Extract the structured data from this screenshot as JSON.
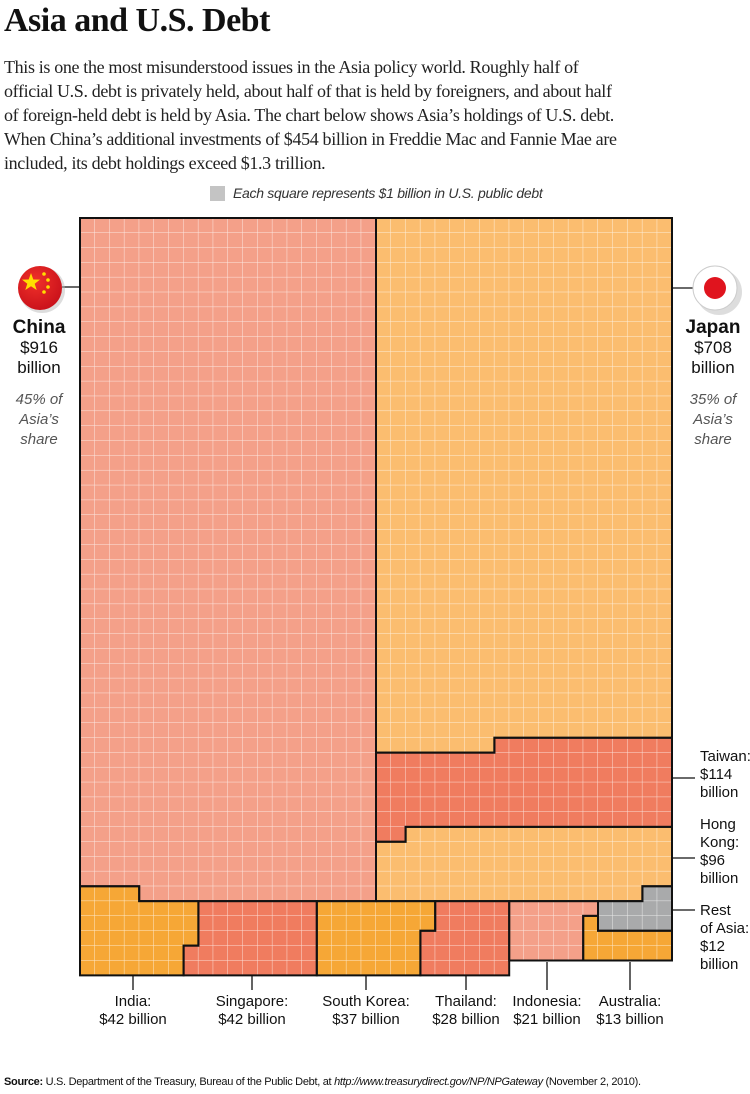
{
  "title": "Asia and U.S. Debt",
  "intro_lines": [
    "This is one the most misunderstood issues in the Asia policy world. Roughly half of",
    "official U.S. debt is privately held, about half of that is held by foreigners, and about half",
    "of foreign-held debt is held by Asia. The chart below shows Asia’s holdings of U.S. debt.",
    "When China’s additional investments of $454 billion in Freddie Mac and Fannie Mae are",
    "included, its debt holdings exceed $1.3 trillion."
  ],
  "legend": "Each square represents $1 billion in U.S. public debt",
  "chart_data": {
    "type": "waffle",
    "unit": "Each square represents $1 billion in U.S. public debt",
    "grid_columns": 40,
    "categories": [
      "China",
      "Japan",
      "Taiwan",
      "Hong Kong",
      "India",
      "Singapore",
      "South Korea",
      "Thailand",
      "Indonesia",
      "Australia",
      "Rest of Asia"
    ],
    "values": [
      916,
      708,
      114,
      96,
      42,
      42,
      37,
      28,
      21,
      13,
      12
    ],
    "colors": {
      "China": "#f4a089",
      "Japan": "#fbbd6f",
      "Taiwan": "#f07c5f",
      "Hong Kong": "#fbbd6f",
      "India": "#f6a736",
      "Singapore": "#f07c5f",
      "South Korea": "#f6a736",
      "Thailand": "#f07c5f",
      "Indonesia": "#f4a089",
      "Australia": "#f6a736",
      "Rest of Asia": "#a9aaab"
    }
  },
  "labels": {
    "china": {
      "name": "China",
      "value": "$916",
      "unit": "billion",
      "share_lines": [
        "45% of",
        "Asia’s",
        "share"
      ],
      "flag": "china-flag-icon"
    },
    "japan": {
      "name": "Japan",
      "value": "$708",
      "unit": "billion",
      "share_lines": [
        "35% of",
        "Asia’s",
        "share"
      ],
      "flag": "japan-flag-icon"
    },
    "taiwan": [
      "Taiwan:",
      "$114",
      "billion"
    ],
    "hongkong": [
      "Hong",
      "Kong:",
      "$96",
      "billion"
    ],
    "rest": [
      "Rest",
      "of Asia:",
      "$12",
      "billion"
    ],
    "india": [
      "India:",
      "$42 billion"
    ],
    "singapore": [
      "Singapore:",
      "$42 billion"
    ],
    "southkorea": [
      "South Korea:",
      "$37 billion"
    ],
    "thailand": [
      "Thailand:",
      "$28 billion"
    ],
    "indonesia": [
      "Indonesia:",
      "$21 billion"
    ],
    "australia": [
      "Australia:",
      "$13 billion"
    ]
  },
  "source": {
    "label": "Source:",
    "text": " U.S. Department of the Treasury, Bureau of the Public Debt, at ",
    "url": "http://www.treasurydirect.gov/NP/NPGateway",
    "date": " (November 2, 2010)."
  }
}
